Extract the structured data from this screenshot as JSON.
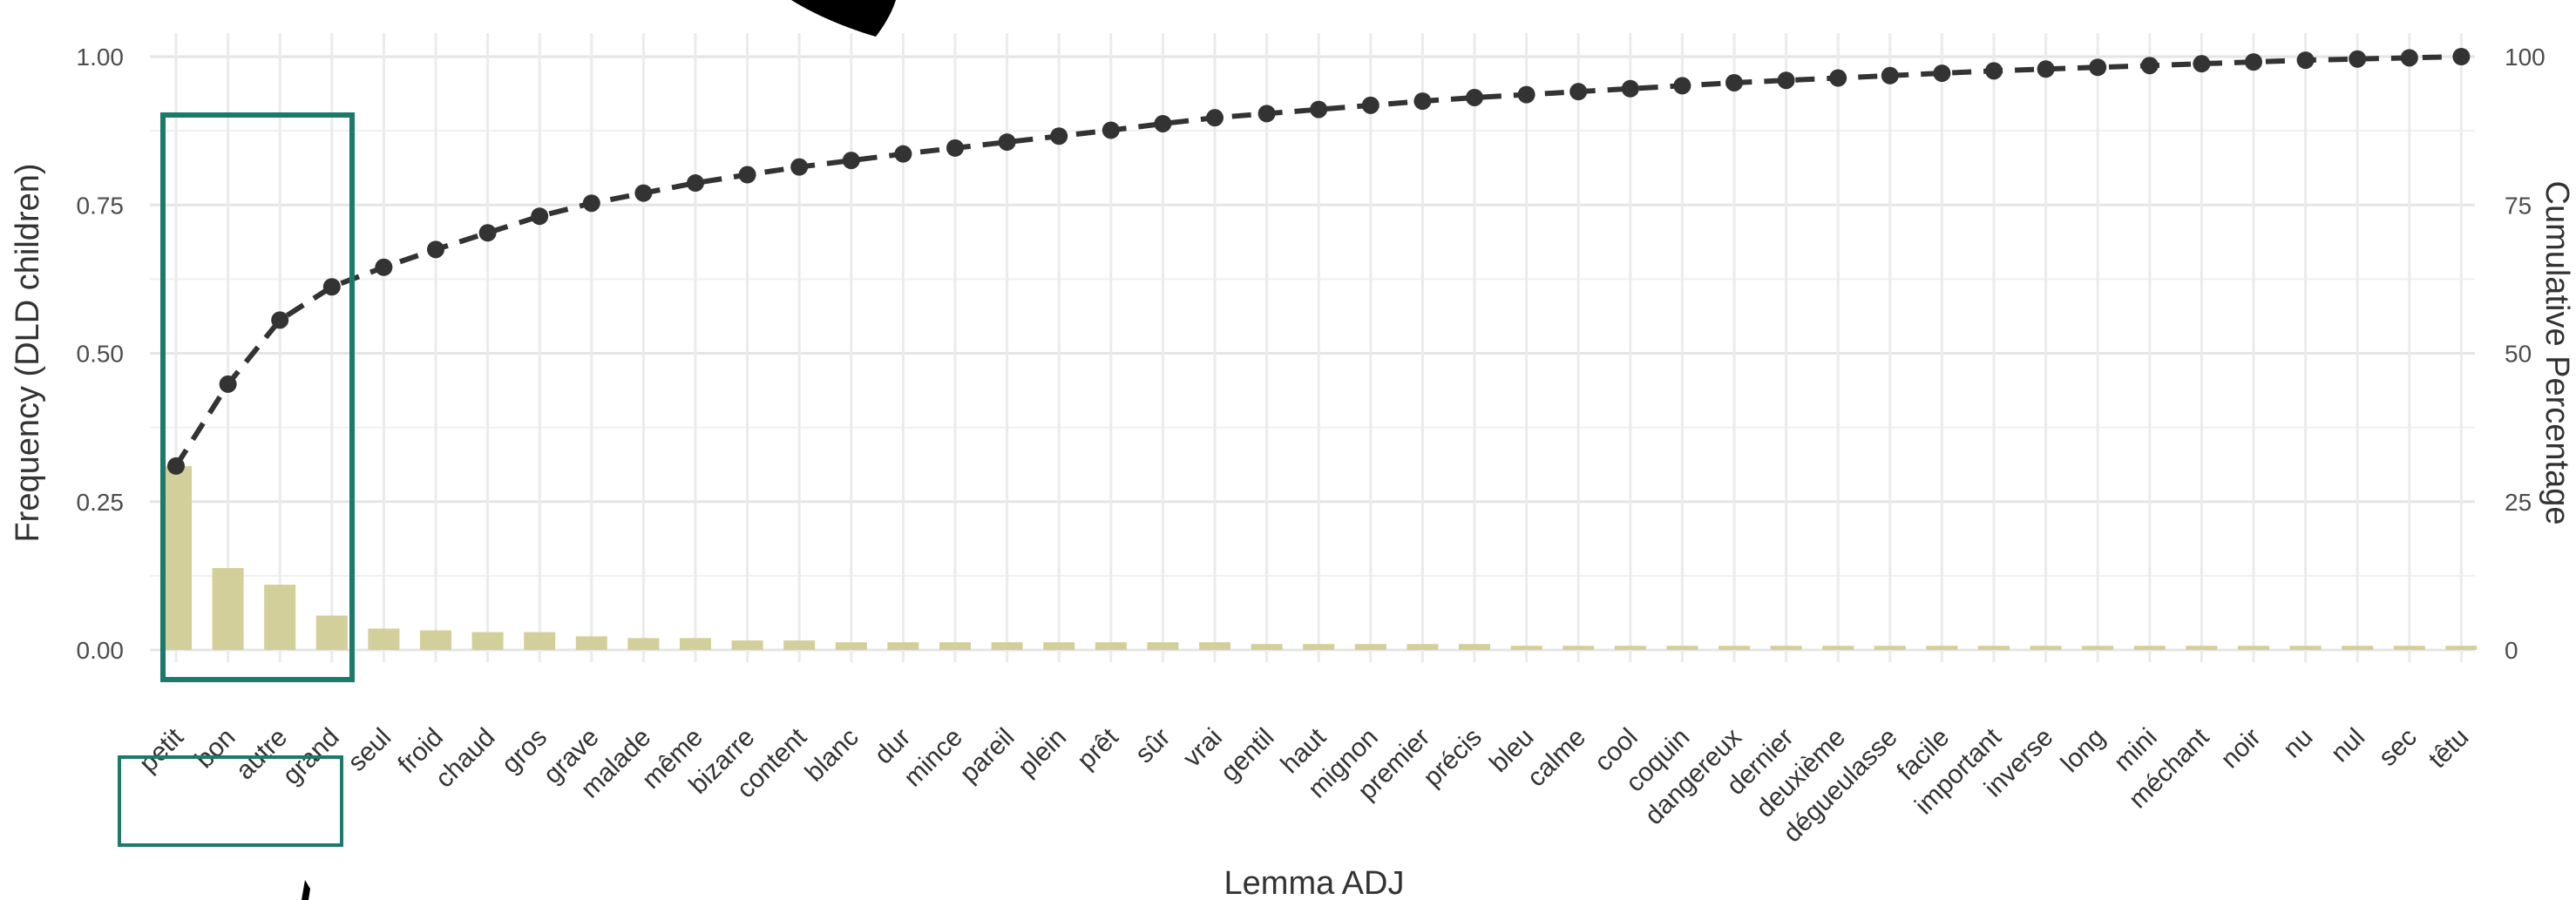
{
  "chart_data": {
    "type": "bar",
    "xlabel": "Lemma ADJ",
    "ylabel": "Frequency (DLD children)",
    "y2label": "Cumulative Percentage",
    "ylim": [
      0,
      1.0
    ],
    "y2lim": [
      0,
      100
    ],
    "yticks": [
      "0.00",
      "0.25",
      "0.50",
      "0.75",
      "1.00"
    ],
    "y2ticks": [
      "0",
      "25",
      "50",
      "75",
      "100"
    ],
    "grid": true,
    "categories": [
      "petit",
      "bon",
      "autre",
      "grand",
      "seul",
      "froid",
      "chaud",
      "gros",
      "grave",
      "malade",
      "même",
      "bizarre",
      "content",
      "blanc",
      "dur",
      "mince",
      "pareil",
      "plein",
      "prêt",
      "sûr",
      "vrai",
      "gentil",
      "haut",
      "mignon",
      "premier",
      "précis",
      "bleu",
      "calme",
      "cool",
      "coquin",
      "dangereux",
      "dernier",
      "deuxième",
      "dégueulasse",
      "facile",
      "important",
      "inverse",
      "long",
      "mini",
      "méchant",
      "noir",
      "nu",
      "nul",
      "sec",
      "têtu"
    ],
    "series": [
      {
        "kind": "bar",
        "color": "#d3cf9a",
        "values": [
          0.31,
          0.138,
          0.11,
          0.058,
          0.036,
          0.033,
          0.03,
          0.03,
          0.023,
          0.02,
          0.02,
          0.016,
          0.016,
          0.013,
          0.013,
          0.013,
          0.013,
          0.013,
          0.013,
          0.013,
          0.013,
          0.01,
          0.01,
          0.01,
          0.01,
          0.01,
          0.007,
          0.007,
          0.007,
          0.007,
          0.007,
          0.007,
          0.007,
          0.007,
          0.007,
          0.007,
          0.007,
          0.007,
          0.007,
          0.007,
          0.007,
          0.007,
          0.007,
          0.007,
          0.007
        ]
      },
      {
        "kind": "line",
        "style": "dashed",
        "color": "#333333",
        "values": [
          31,
          44.8,
          55.6,
          61.2,
          64.5,
          67.5,
          70.3,
          73.1,
          75.3,
          77,
          78.7,
          80.1,
          81.4,
          82.5,
          83.6,
          84.6,
          85.6,
          86.6,
          87.6,
          88.7,
          89.7,
          90.4,
          91.1,
          91.8,
          92.5,
          93.1,
          93.6,
          94.1,
          94.6,
          95.1,
          95.6,
          96,
          96.4,
          96.8,
          97.2,
          97.6,
          97.9,
          98.2,
          98.5,
          98.8,
          99.1,
          99.4,
          99.6,
          99.8,
          100
        ]
      }
    ],
    "highlight": {
      "color": "#1b7a6a",
      "categories": [
        "petit",
        "bon",
        "autre",
        "grand"
      ]
    }
  }
}
